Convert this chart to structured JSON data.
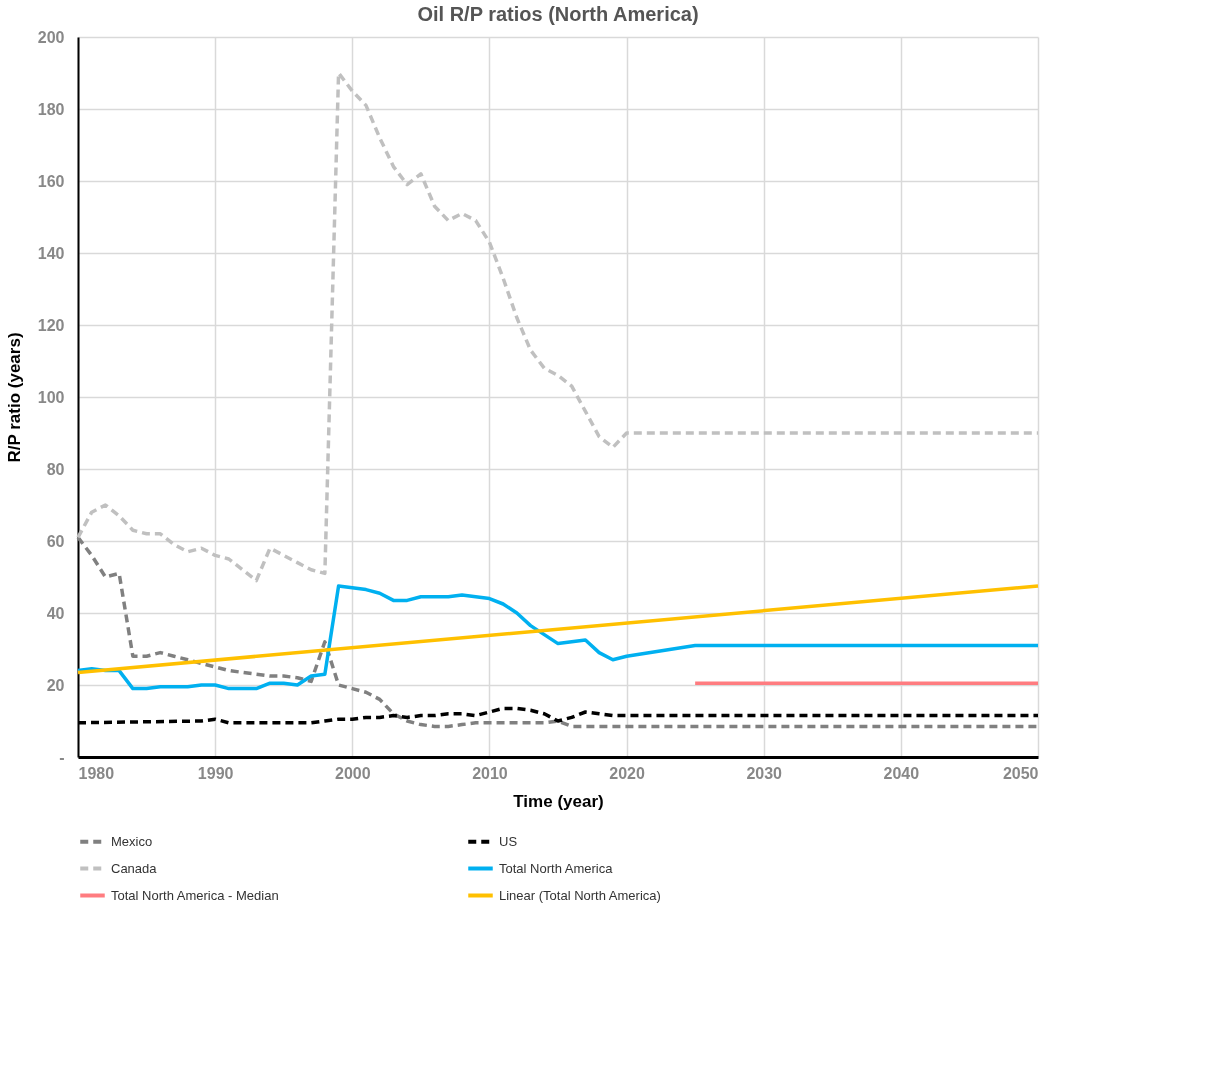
{
  "chart_data": {
    "type": "line",
    "title": "Oil R/P ratios (North America)",
    "xlabel": "Time (year)",
    "ylabel": "R/P ratio (years)",
    "xlim": [
      1980,
      2050
    ],
    "xticks": [
      1980,
      1990,
      2000,
      2010,
      2020,
      2030,
      2040,
      2050
    ],
    "ylim": [
      0,
      200
    ],
    "yticks": [
      {
        "value": 0,
        "label": "-"
      },
      20,
      40,
      60,
      80,
      100,
      120,
      140,
      160,
      180,
      200
    ],
    "grid": true,
    "legend": "bottom",
    "series": [
      {
        "name": "Mexico",
        "color": "#808080",
        "line_style": "dashed",
        "x": [
          1980,
          1981,
          1982,
          1983,
          1984,
          1985,
          1986,
          1987,
          1988,
          1989,
          1990,
          1991,
          1992,
          1993,
          1994,
          1995,
          1996,
          1997,
          1998,
          1999,
          2000,
          2001,
          2002,
          2003,
          2004,
          2005,
          2006,
          2007,
          2008,
          2009,
          2010,
          2014,
          2015,
          2016,
          2050
        ],
        "values": [
          61,
          56,
          50,
          51,
          28,
          28,
          29,
          28,
          27,
          26,
          25,
          24,
          23.5,
          23,
          22.5,
          22.5,
          22,
          21,
          32,
          20,
          19,
          18,
          16,
          12,
          10,
          9,
          8.5,
          8.5,
          9,
          9.5,
          9.5,
          9.5,
          10,
          8.5,
          8.5
        ]
      },
      {
        "name": "US",
        "color": "#000000",
        "line_style": "dashed",
        "x": [
          1980,
          1989,
          1990,
          1991,
          1997,
          1998,
          1999,
          2000,
          2001,
          2002,
          2003,
          2004,
          2005,
          2006,
          2007,
          2008,
          2009,
          2010,
          2011,
          2012,
          2013,
          2014,
          2015,
          2016,
          2017,
          2018,
          2019,
          2020,
          2050
        ],
        "values": [
          9.5,
          10,
          10.5,
          9.5,
          9.5,
          10,
          10.5,
          10.5,
          11,
          11,
          11.5,
          11,
          11.5,
          11.5,
          12,
          12,
          11.5,
          12.5,
          13.5,
          13.5,
          13,
          12,
          10,
          11,
          12.5,
          12,
          11.5,
          11.5,
          11.5
        ]
      },
      {
        "name": "Canada",
        "color": "#c0c0c0",
        "line_style": "dashed",
        "x": [
          1980,
          1981,
          1982,
          1983,
          1984,
          1985,
          1986,
          1987,
          1988,
          1989,
          1990,
          1991,
          1992,
          1993,
          1994,
          1995,
          1996,
          1997,
          1998,
          1999,
          2000,
          2001,
          2002,
          2003,
          2004,
          2005,
          2006,
          2007,
          2008,
          2009,
          2010,
          2011,
          2012,
          2013,
          2014,
          2015,
          2016,
          2017,
          2018,
          2019,
          2020,
          2050
        ],
        "values": [
          61,
          68,
          70,
          67,
          63,
          62,
          62,
          59,
          57,
          58,
          56,
          55,
          52,
          49,
          58,
          56,
          54,
          52,
          51,
          190,
          185,
          181,
          172,
          164,
          159,
          162,
          153,
          149,
          151,
          149,
          143,
          133,
          122,
          113,
          108,
          106,
          103,
          96,
          89,
          86,
          90,
          90
        ]
      },
      {
        "name": "Total North America",
        "color": "#00b0f0",
        "line_style": "solid",
        "x": [
          1980,
          1981,
          1982,
          1983,
          1984,
          1985,
          1986,
          1987,
          1988,
          1989,
          1990,
          1991,
          1992,
          1993,
          1994,
          1995,
          1996,
          1997,
          1998,
          1999,
          2000,
          2001,
          2002,
          2003,
          2004,
          2005,
          2006,
          2007,
          2008,
          2009,
          2010,
          2011,
          2012,
          2013,
          2014,
          2015,
          2016,
          2017,
          2018,
          2019,
          2020,
          2025,
          2050
        ],
        "values": [
          24,
          24.5,
          24,
          24,
          19,
          19,
          19.5,
          19.5,
          19.5,
          20,
          20,
          19,
          19,
          19,
          20.5,
          20.5,
          20,
          22.5,
          23,
          47.5,
          47,
          46.5,
          45.5,
          43.5,
          43.5,
          44.5,
          44.5,
          44.5,
          45,
          44.5,
          44,
          42.5,
          40,
          36.5,
          34,
          31.5,
          32,
          32.5,
          29,
          27,
          28,
          31,
          31
        ]
      },
      {
        "name": "Total North America - Median",
        "color": "#ff7c80",
        "line_style": "solid",
        "x": [
          2025,
          2050
        ],
        "values": [
          20.5,
          20.5
        ]
      },
      {
        "name": "Linear (Total North America)",
        "color": "#ffc000",
        "line_style": "solid",
        "x": [
          1980,
          2050
        ],
        "values": [
          23.5,
          47.5
        ]
      }
    ]
  }
}
